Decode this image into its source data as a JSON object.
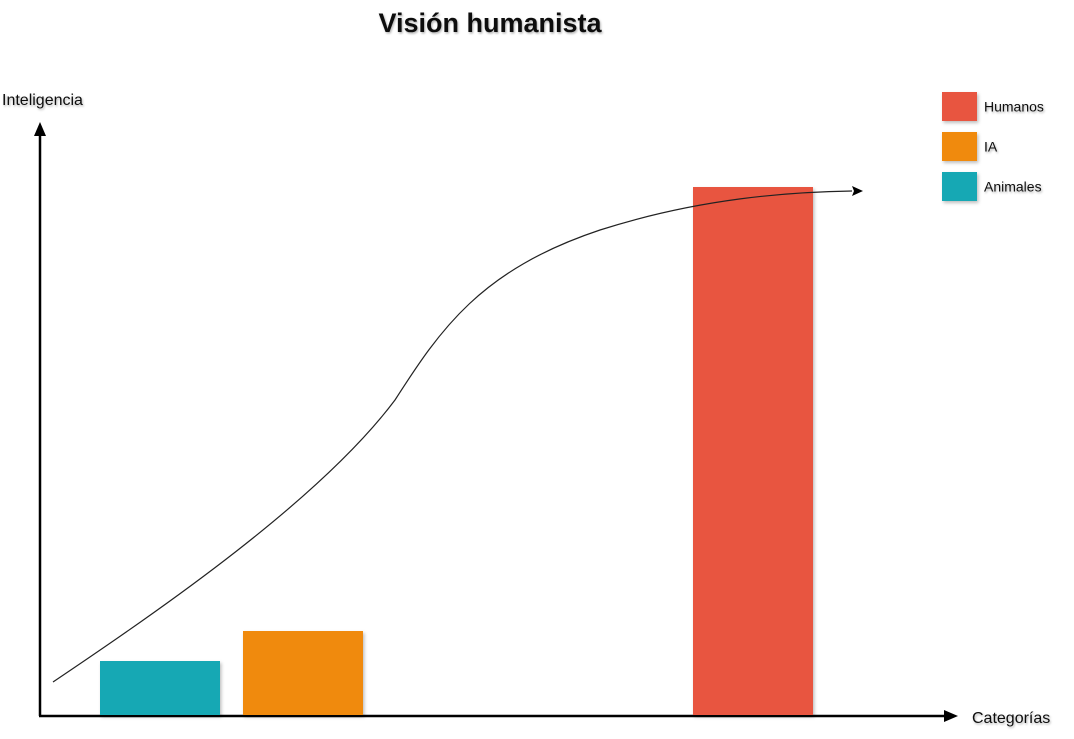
{
  "chart_data": {
    "type": "bar",
    "title": "Visión humanista",
    "xlabel": "Categorías",
    "ylabel": "Inteligencia",
    "ylim": [
      0,
      100
    ],
    "grid": false,
    "legend_position": "top-right",
    "categories": [
      "Animales",
      "IA",
      "Humanos"
    ],
    "values": [
      9,
      14,
      88
    ],
    "colors": [
      "#17a8b4",
      "#f08a11",
      "#e85440"
    ],
    "legend": [
      {
        "label": "Humanos",
        "color": "#e85440"
      },
      {
        "label": "IA",
        "color": "#f08a11"
      },
      {
        "label": "Animales",
        "color": "#17a8b4"
      }
    ],
    "trend_curve": {
      "description_shown": false,
      "arrow_end": true
    }
  }
}
